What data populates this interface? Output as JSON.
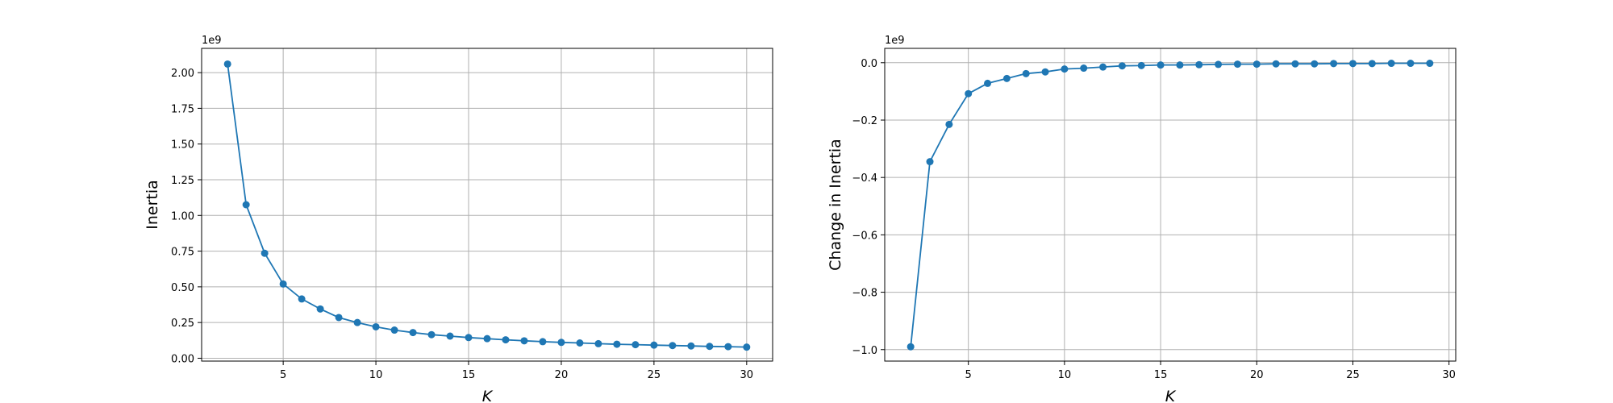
{
  "figure": {
    "line_color": "#1f77b4",
    "grid_color": "#b0b0b0"
  },
  "chart_data": [
    {
      "type": "line",
      "marker": "circle",
      "grid": true,
      "xlabel": "K",
      "ylabel": "Inertia",
      "offset_text": "1e9",
      "xlim": [
        0.6,
        31.4
      ],
      "ylim": [
        -0.02,
        2.17
      ],
      "xticks": [
        5,
        10,
        15,
        20,
        25,
        30
      ],
      "xtick_labels": [
        "5",
        "10",
        "15",
        "20",
        "25",
        "30"
      ],
      "yticks": [
        0.0,
        0.25,
        0.5,
        0.75,
        1.0,
        1.25,
        1.5,
        1.75,
        2.0
      ],
      "ytick_labels": [
        "0.00",
        "0.25",
        "0.50",
        "0.75",
        "1.00",
        "1.25",
        "1.50",
        "1.75",
        "2.00"
      ],
      "x": [
        2,
        3,
        4,
        5,
        6,
        7,
        8,
        9,
        10,
        11,
        12,
        13,
        14,
        15,
        16,
        17,
        18,
        19,
        20,
        21,
        22,
        23,
        24,
        25,
        26,
        27,
        28,
        29,
        30
      ],
      "y": [
        2.06,
        1.075,
        0.735,
        0.52,
        0.415,
        0.345,
        0.285,
        0.25,
        0.22,
        0.197,
        0.18,
        0.165,
        0.155,
        0.145,
        0.137,
        0.129,
        0.122,
        0.116,
        0.111,
        0.107,
        0.102,
        0.098,
        0.095,
        0.092,
        0.089,
        0.086,
        0.083,
        0.081,
        0.078
      ]
    },
    {
      "type": "line",
      "marker": "circle",
      "grid": true,
      "xlabel": "K",
      "ylabel": "Change in Inertia",
      "offset_text": "1e9",
      "xlim": [
        0.65,
        30.35
      ],
      "ylim": [
        -1.04,
        0.05
      ],
      "xticks": [
        5,
        10,
        15,
        20,
        25,
        30
      ],
      "xtick_labels": [
        "5",
        "10",
        "15",
        "20",
        "25",
        "30"
      ],
      "yticks": [
        0.0,
        -0.2,
        -0.4,
        -0.6,
        -0.8,
        -1.0
      ],
      "ytick_labels": [
        "0.0",
        "−0.2",
        "−0.4",
        "−0.6",
        "−0.8",
        "−1.0"
      ],
      "x": [
        2,
        3,
        4,
        5,
        6,
        7,
        8,
        9,
        10,
        11,
        12,
        13,
        14,
        15,
        16,
        17,
        18,
        19,
        20,
        21,
        22,
        23,
        24,
        25,
        26,
        27,
        28,
        29
      ],
      "y": [
        -0.99,
        -0.345,
        -0.215,
        -0.108,
        -0.072,
        -0.055,
        -0.038,
        -0.032,
        -0.022,
        -0.019,
        -0.015,
        -0.011,
        -0.01,
        -0.008,
        -0.008,
        -0.007,
        -0.006,
        -0.005,
        -0.005,
        -0.004,
        -0.004,
        -0.004,
        -0.003,
        -0.003,
        -0.003,
        -0.002,
        -0.002,
        -0.002
      ]
    }
  ]
}
